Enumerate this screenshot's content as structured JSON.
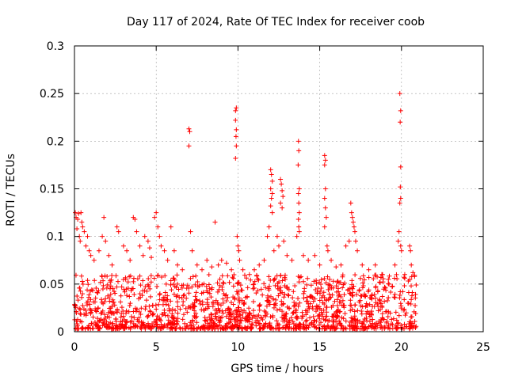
{
  "chart_data": {
    "type": "scatter",
    "title": "Day 117 of 2024, Rate Of TEC Index for receiver coob",
    "xlabel": "GPS time / hours",
    "ylabel": "ROTI / TECUs",
    "xlim": [
      0,
      25
    ],
    "ylim": [
      0,
      0.3
    ],
    "xticks": [
      0,
      5,
      10,
      15,
      20,
      25
    ],
    "xtick_labels": [
      "0",
      "5",
      "10",
      "15",
      "20",
      "25"
    ],
    "yticks": [
      0,
      0.05,
      0.1,
      0.15,
      0.2,
      0.25,
      0.3
    ],
    "ytick_labels": [
      "0",
      "0.05",
      "0.1",
      "0.15",
      "0.2",
      "0.25",
      "0.3"
    ],
    "grid": true,
    "marker": "plus",
    "color": "#ff0000",
    "dense_band": {
      "x_range": [
        0,
        20.9
      ],
      "y_range": [
        0.003,
        0.06
      ],
      "description": "dense cluster of ROTI samples between 0.005 and ~0.06 TECU/min across the day"
    },
    "points": [
      [
        0.05,
        0.125
      ],
      [
        0.1,
        0.12
      ],
      [
        0.15,
        0.108
      ],
      [
        0.2,
        0.118
      ],
      [
        0.25,
        0.124
      ],
      [
        0.3,
        0.1
      ],
      [
        0.35,
        0.095
      ],
      [
        0.4,
        0.125
      ],
      [
        0.45,
        0.115
      ],
      [
        0.5,
        0.11
      ],
      [
        0.6,
        0.105
      ],
      [
        0.7,
        0.09
      ],
      [
        0.8,
        0.1
      ],
      [
        0.9,
        0.085
      ],
      [
        1.0,
        0.08
      ],
      [
        1.2,
        0.075
      ],
      [
        1.5,
        0.085
      ],
      [
        1.7,
        0.1
      ],
      [
        1.8,
        0.12
      ],
      [
        1.9,
        0.095
      ],
      [
        2.1,
        0.08
      ],
      [
        2.3,
        0.07
      ],
      [
        2.6,
        0.11
      ],
      [
        2.7,
        0.105
      ],
      [
        3.0,
        0.09
      ],
      [
        3.2,
        0.085
      ],
      [
        3.4,
        0.075
      ],
      [
        3.6,
        0.12
      ],
      [
        3.7,
        0.118
      ],
      [
        3.8,
        0.105
      ],
      [
        4.0,
        0.09
      ],
      [
        4.2,
        0.08
      ],
      [
        4.3,
        0.1
      ],
      [
        4.5,
        0.095
      ],
      [
        4.6,
        0.088
      ],
      [
        4.7,
        0.078
      ],
      [
        4.9,
        0.12
      ],
      [
        5.0,
        0.125
      ],
      [
        5.1,
        0.11
      ],
      [
        5.2,
        0.1
      ],
      [
        5.3,
        0.09
      ],
      [
        5.5,
        0.085
      ],
      [
        5.7,
        0.075
      ],
      [
        5.9,
        0.11
      ],
      [
        6.1,
        0.085
      ],
      [
        6.3,
        0.07
      ],
      [
        6.6,
        0.065
      ],
      [
        7.0,
        0.213
      ],
      [
        7.05,
        0.21
      ],
      [
        7.0,
        0.195
      ],
      [
        7.1,
        0.105
      ],
      [
        7.2,
        0.085
      ],
      [
        7.5,
        0.07
      ],
      [
        7.8,
        0.065
      ],
      [
        8.1,
        0.075
      ],
      [
        8.4,
        0.068
      ],
      [
        8.6,
        0.115
      ],
      [
        8.8,
        0.07
      ],
      [
        9.0,
        0.075
      ],
      [
        9.3,
        0.072
      ],
      [
        9.6,
        0.065
      ],
      [
        9.85,
        0.232
      ],
      [
        9.9,
        0.235
      ],
      [
        9.85,
        0.222
      ],
      [
        9.9,
        0.212
      ],
      [
        9.88,
        0.205
      ],
      [
        9.9,
        0.195
      ],
      [
        9.85,
        0.182
      ],
      [
        9.95,
        0.1
      ],
      [
        10.0,
        0.09
      ],
      [
        10.05,
        0.085
      ],
      [
        10.1,
        0.075
      ],
      [
        10.3,
        0.065
      ],
      [
        10.7,
        0.06
      ],
      [
        11.0,
        0.065
      ],
      [
        11.3,
        0.07
      ],
      [
        11.6,
        0.075
      ],
      [
        11.8,
        0.1
      ],
      [
        11.9,
        0.11
      ],
      [
        12.0,
        0.17
      ],
      [
        12.05,
        0.165
      ],
      [
        12.1,
        0.158
      ],
      [
        12.0,
        0.15
      ],
      [
        12.1,
        0.145
      ],
      [
        12.05,
        0.14
      ],
      [
        12.0,
        0.132
      ],
      [
        12.1,
        0.125
      ],
      [
        12.2,
        0.085
      ],
      [
        12.4,
        0.1
      ],
      [
        12.5,
        0.09
      ],
      [
        12.6,
        0.16
      ],
      [
        12.65,
        0.155
      ],
      [
        12.7,
        0.148
      ],
      [
        12.75,
        0.142
      ],
      [
        12.6,
        0.135
      ],
      [
        12.7,
        0.13
      ],
      [
        12.8,
        0.095
      ],
      [
        13.0,
        0.08
      ],
      [
        13.3,
        0.075
      ],
      [
        13.6,
        0.1
      ],
      [
        13.7,
        0.2
      ],
      [
        13.72,
        0.19
      ],
      [
        13.68,
        0.175
      ],
      [
        13.75,
        0.15
      ],
      [
        13.7,
        0.145
      ],
      [
        13.72,
        0.135
      ],
      [
        13.75,
        0.125
      ],
      [
        13.7,
        0.118
      ],
      [
        13.72,
        0.11
      ],
      [
        13.75,
        0.105
      ],
      [
        14.0,
        0.08
      ],
      [
        14.3,
        0.075
      ],
      [
        14.7,
        0.08
      ],
      [
        15.0,
        0.07
      ],
      [
        15.3,
        0.185
      ],
      [
        15.35,
        0.18
      ],
      [
        15.3,
        0.175
      ],
      [
        15.35,
        0.15
      ],
      [
        15.3,
        0.14
      ],
      [
        15.35,
        0.13
      ],
      [
        15.4,
        0.12
      ],
      [
        15.3,
        0.11
      ],
      [
        15.45,
        0.09
      ],
      [
        15.5,
        0.085
      ],
      [
        15.7,
        0.075
      ],
      [
        16.0,
        0.068
      ],
      [
        16.3,
        0.07
      ],
      [
        16.6,
        0.09
      ],
      [
        16.8,
        0.095
      ],
      [
        16.9,
        0.135
      ],
      [
        16.95,
        0.125
      ],
      [
        17.0,
        0.12
      ],
      [
        17.05,
        0.115
      ],
      [
        17.1,
        0.11
      ],
      [
        17.15,
        0.105
      ],
      [
        17.2,
        0.095
      ],
      [
        17.3,
        0.085
      ],
      [
        17.6,
        0.07
      ],
      [
        18.0,
        0.065
      ],
      [
        18.4,
        0.07
      ],
      [
        18.8,
        0.06
      ],
      [
        19.2,
        0.055
      ],
      [
        19.6,
        0.07
      ],
      [
        19.8,
        0.095
      ],
      [
        19.85,
        0.105
      ],
      [
        19.9,
        0.25
      ],
      [
        19.95,
        0.232
      ],
      [
        19.92,
        0.22
      ],
      [
        19.95,
        0.173
      ],
      [
        19.93,
        0.152
      ],
      [
        19.95,
        0.14
      ],
      [
        19.9,
        0.135
      ],
      [
        19.95,
        0.09
      ],
      [
        20.0,
        0.085
      ],
      [
        20.2,
        0.06
      ],
      [
        20.5,
        0.09
      ],
      [
        20.55,
        0.085
      ],
      [
        20.6,
        0.07
      ],
      [
        20.7,
        0.062
      ],
      [
        20.8,
        0.058
      ]
    ]
  }
}
